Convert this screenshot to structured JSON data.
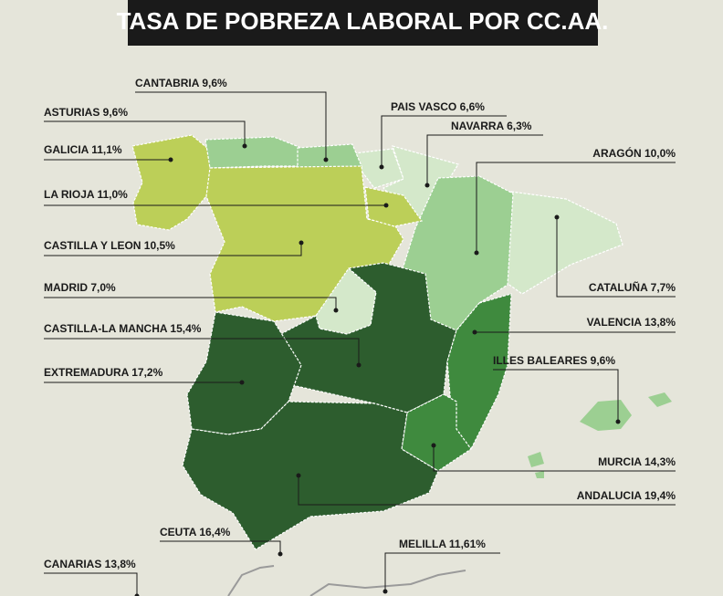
{
  "title": "TASA DE POBREZA LABORAL POR CC.AA.",
  "labels": [
    "CANTABRIA 9,6%",
    "ASTURIAS 9,6%",
    "GALICIA 11,1%",
    "LA RIOJA 11,0%",
    "CASTILLA Y LEON 10,5%",
    "MADRID 7,0%",
    "CASTILLA-LA MANCHA 15,4%",
    "EXTREMADURA 17,2%",
    "CEUTA 16,4%",
    "CANARIAS 13,8%",
    "PAIS VASCO 6,6%",
    "NAVARRA 6,3%",
    "ARAGÓN 10,0%",
    "CATALUÑA 7,7%",
    "VALENCIA 13,8%",
    "ILLES BALEARES 9,6%",
    "MURCIA 14,3%",
    "ANDALUCIA 19,4%",
    "MELILLA 11,61%"
  ]
}
